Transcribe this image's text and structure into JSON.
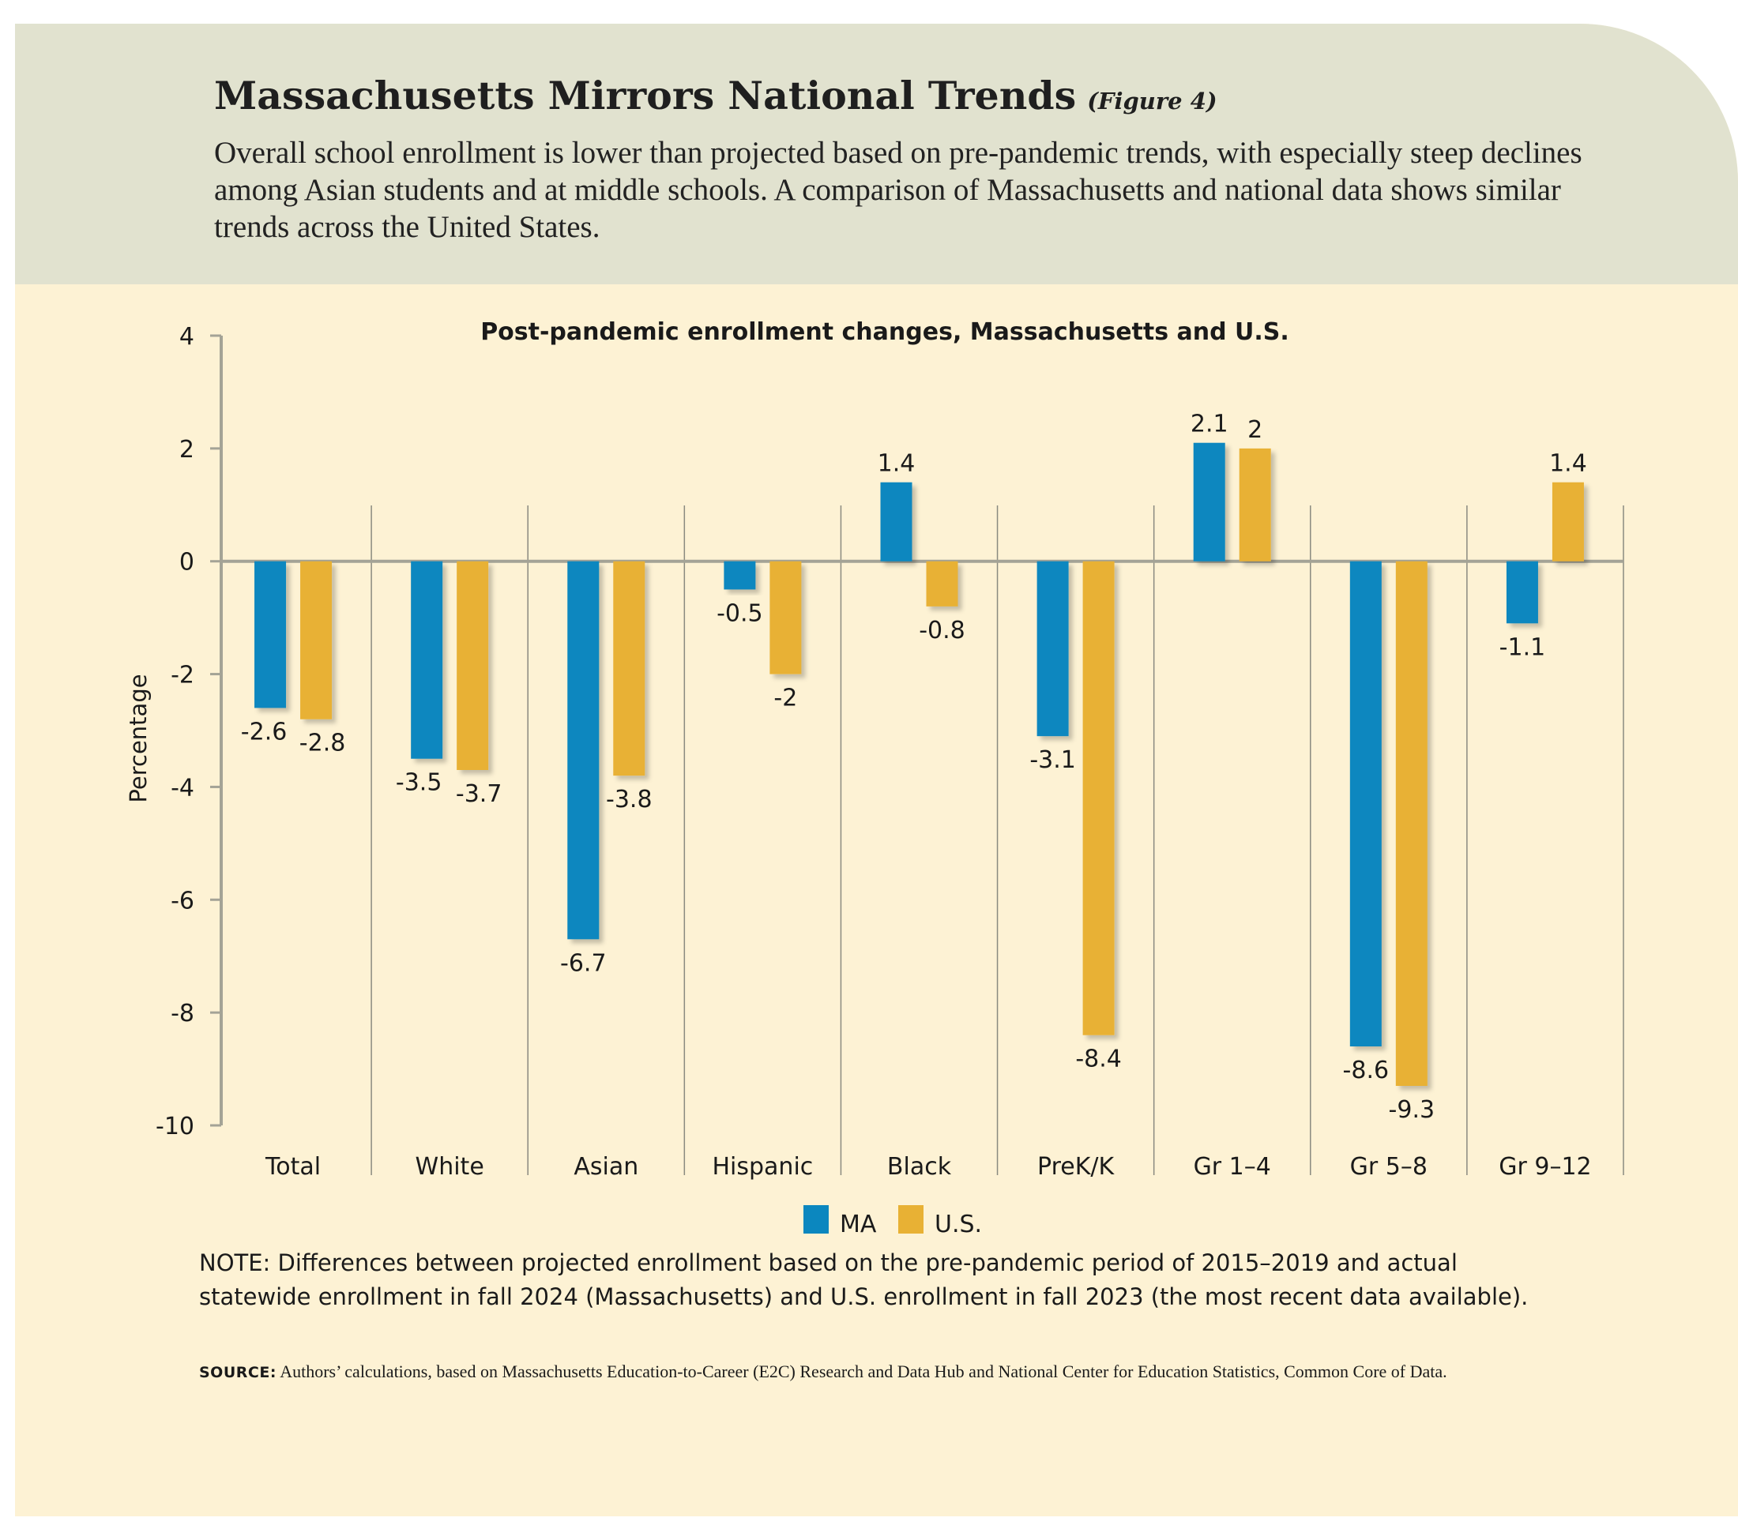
{
  "figure": {
    "title": "Massachusetts Mirrors National Trends",
    "tag": "(Figure 4)",
    "subtitle": "Overall school enrollment is lower than projected based on pre-pandemic trends, with especially steep declines among Asian students and at middle schools. A comparison of Massachusetts and national data shows similar trends across the United States."
  },
  "chart_data": {
    "type": "bar",
    "title": "Post-pandemic enrollment changes, Massachusetts and U.S.",
    "xlabel": "",
    "ylabel": "Percentage",
    "ylim": [
      -10,
      4
    ],
    "yticks": [
      4,
      2,
      0,
      -2,
      -4,
      -6,
      -8,
      -10
    ],
    "categories": [
      "Total",
      "White",
      "Asian",
      "Hispanic",
      "Black",
      "PreK/K",
      "Gr 1–4",
      "Gr 5–8",
      "Gr 9–12"
    ],
    "series": [
      {
        "name": "MA",
        "color": "#0b87bf",
        "values": [
          -2.6,
          -3.5,
          -6.7,
          -0.5,
          1.4,
          -3.1,
          2.1,
          -8.6,
          -1.1
        ]
      },
      {
        "name": "U.S.",
        "color": "#e8b134",
        "values": [
          -2.8,
          -3.7,
          -3.8,
          -2,
          -0.8,
          -8.4,
          2,
          -9.3,
          1.4
        ]
      }
    ],
    "legend": "bottom-center"
  },
  "note": "NOTE: Differences between projected enrollment based on the pre-pandemic period of 2015–2019 and actual statewide enrollment in fall 2024 (Massachusetts) and U.S. enrollment in fall 2023 (the most recent data available).",
  "source": {
    "label": "SOURCE:",
    "text": " Authors’ calculations, based on Massachusetts Education-to-Career (E2C) Research and Data Hub and National Center for Education Statistics, Common Core of Data."
  },
  "colors": {
    "header_bg": "#e1e2cf",
    "panel_bg": "#fdf2d4",
    "ma": "#0b87bf",
    "us": "#e8b134"
  }
}
